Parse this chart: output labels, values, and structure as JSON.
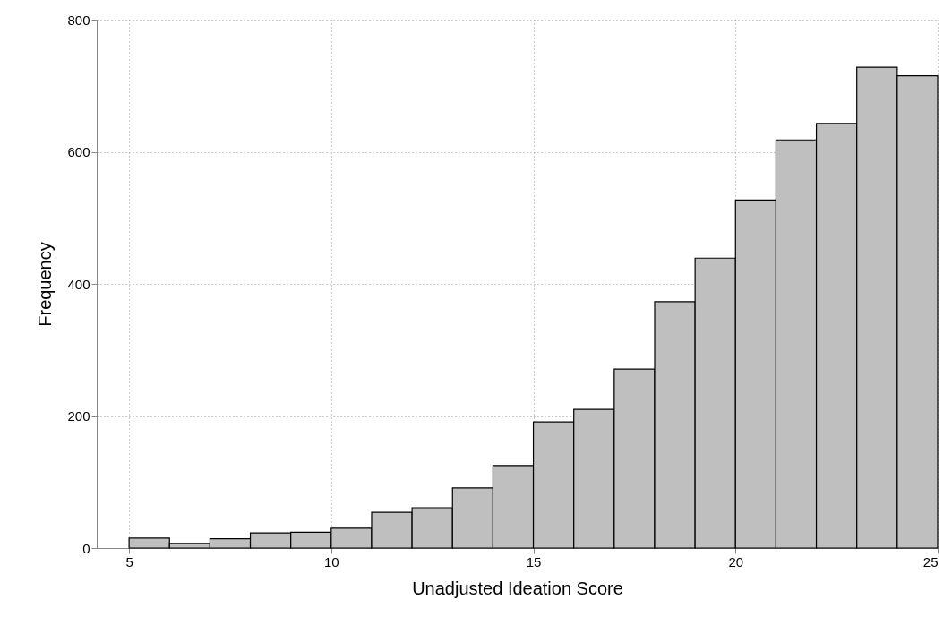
{
  "chart_data": {
    "type": "histogram",
    "xlabel": "Unadjusted Ideation Score",
    "ylabel": "Frequency",
    "bins": [
      5,
      6,
      7,
      8,
      9,
      10,
      11,
      12,
      13,
      14,
      15,
      16,
      17,
      18,
      19,
      20,
      21,
      22,
      23,
      24,
      25
    ],
    "values": [
      15,
      7,
      14,
      23,
      24,
      30,
      54,
      61,
      91,
      125,
      191,
      210,
      271,
      373,
      439,
      527,
      618,
      643,
      728,
      715
    ],
    "color": "#bfbfbf",
    "xlim": [
      4.2,
      25
    ],
    "xticks": [
      5,
      10,
      15,
      20,
      25
    ],
    "ylim": [
      0,
      800
    ],
    "yticks": [
      0,
      200,
      400,
      600,
      800
    ],
    "grid": true
  }
}
